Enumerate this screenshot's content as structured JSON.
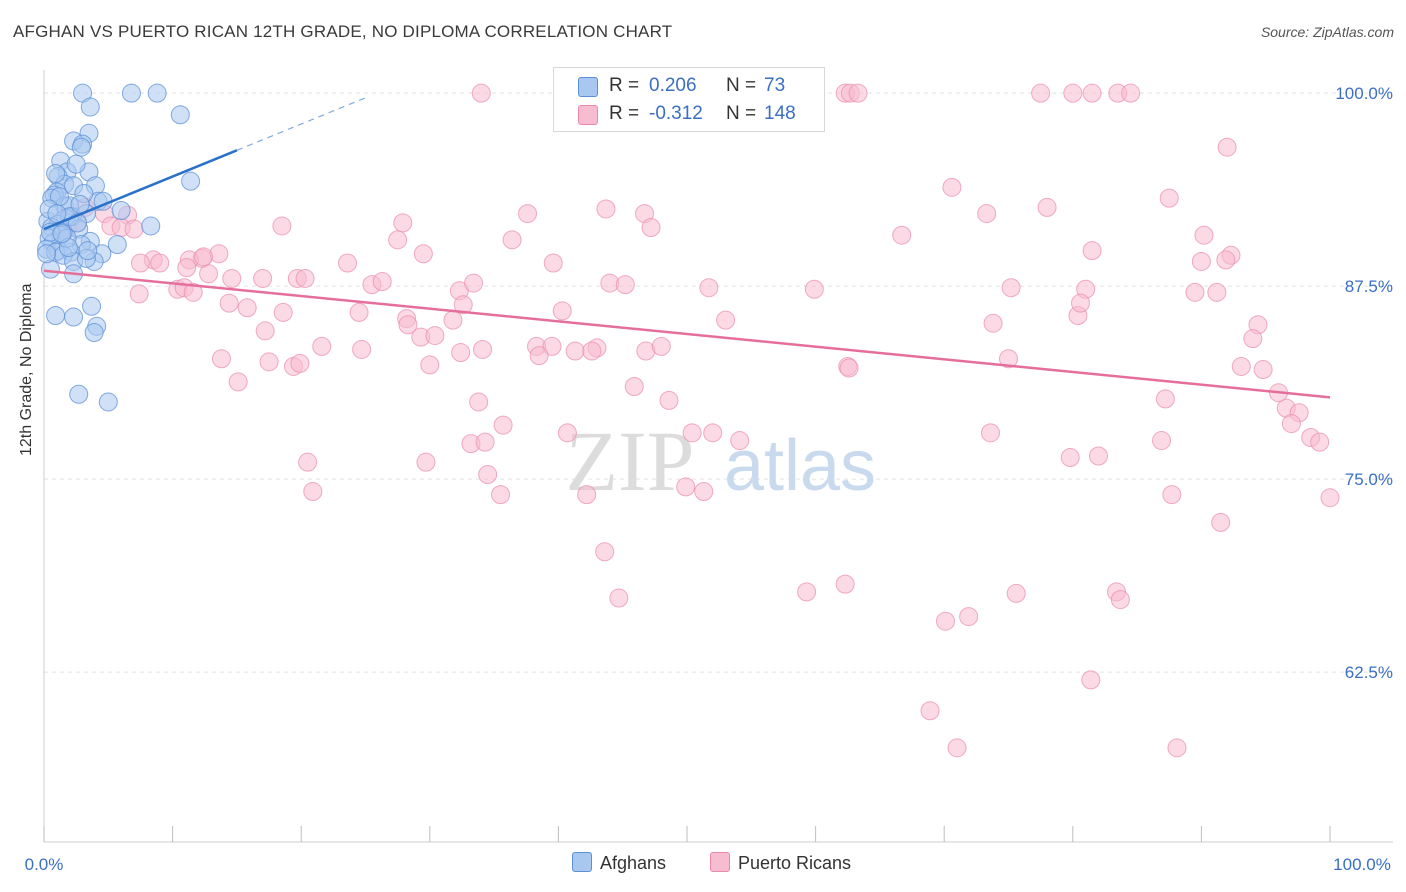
{
  "title": "AFGHAN VS PUERTO RICAN 12TH GRADE, NO DIPLOMA CORRELATION CHART",
  "source": "Source: ZipAtlas.com",
  "watermark": {
    "zip": "ZIP",
    "atlas": "atlas"
  },
  "legend": {
    "rows": [
      {
        "r_label": "R =",
        "r_value": "0.206",
        "n_label": "N =",
        "n_value": "73"
      },
      {
        "r_label": "R =",
        "r_value": "-0.312",
        "n_label": "N =",
        "n_value": "148"
      }
    ]
  },
  "bottom_legend": [
    {
      "label": "Afghans"
    },
    {
      "label": "Puerto Ricans"
    }
  ],
  "colors": {
    "afghan_fill": "#a9c8f0",
    "afghan_stroke": "#5b8fd6",
    "afghan_line": "#2a72c9",
    "pr_fill": "#f7bcd0",
    "pr_stroke": "#e98aaa",
    "pr_line": "#e56f9a",
    "tick_blue": "#3a6fc4"
  },
  "chart_data": {
    "type": "scatter",
    "title": "AFGHAN VS PUERTO RICAN 12TH GRADE, NO DIPLOMA CORRELATION CHART",
    "xlabel": "",
    "ylabel": "12th Grade, No Diploma",
    "xlim": [
      0,
      100
    ],
    "ylim": [
      51.5,
      101.5
    ],
    "x_tick_labels": [
      "0.0%",
      "100.0%"
    ],
    "y_ticks": [
      {
        "value": 100.0,
        "label": "100.0%"
      },
      {
        "value": 87.5,
        "label": "87.5%"
      },
      {
        "value": 75.0,
        "label": "75.0%"
      },
      {
        "value": 62.5,
        "label": "62.5%"
      }
    ],
    "series": [
      {
        "name": "Afghans",
        "r": 0.206,
        "n": 73,
        "trend": {
          "x0": 0.0,
          "y0": 91.2,
          "x1": 15.0,
          "y1": 96.3,
          "dash_to_x": 25.0,
          "dash_to_y": 99.7
        },
        "points": [
          [
            3.0,
            100.0
          ],
          [
            6.8,
            100.0
          ],
          [
            8.8,
            100.0
          ],
          [
            3.6,
            99.1
          ],
          [
            10.6,
            98.6
          ],
          [
            3.5,
            97.4
          ],
          [
            2.3,
            96.9
          ],
          [
            3.0,
            96.7
          ],
          [
            2.9,
            96.5
          ],
          [
            1.3,
            95.6
          ],
          [
            1.8,
            94.9
          ],
          [
            3.5,
            94.9
          ],
          [
            1.1,
            94.6
          ],
          [
            11.4,
            94.3
          ],
          [
            1.6,
            94.1
          ],
          [
            2.3,
            94.0
          ],
          [
            4.0,
            94.0
          ],
          [
            1.0,
            93.6
          ],
          [
            0.8,
            93.4
          ],
          [
            0.6,
            93.2
          ],
          [
            4.2,
            93.0
          ],
          [
            4.6,
            93.0
          ],
          [
            1.6,
            92.7
          ],
          [
            2.0,
            92.7
          ],
          [
            6.0,
            92.4
          ],
          [
            3.3,
            92.2
          ],
          [
            2.2,
            92.0
          ],
          [
            1.7,
            91.9
          ],
          [
            0.3,
            91.7
          ],
          [
            1.1,
            91.5
          ],
          [
            0.6,
            91.3
          ],
          [
            8.3,
            91.4
          ],
          [
            2.7,
            91.2
          ],
          [
            1.5,
            91.0
          ],
          [
            1.3,
            90.8
          ],
          [
            0.4,
            90.6
          ],
          [
            0.7,
            90.3
          ],
          [
            3.6,
            90.4
          ],
          [
            2.9,
            90.2
          ],
          [
            5.7,
            90.2
          ],
          [
            0.2,
            89.9
          ],
          [
            1.1,
            89.8
          ],
          [
            2.1,
            89.7
          ],
          [
            0.9,
            89.7
          ],
          [
            4.5,
            89.6
          ],
          [
            1.5,
            89.5
          ],
          [
            3.9,
            89.1
          ],
          [
            2.3,
            89.1
          ],
          [
            3.3,
            89.3
          ],
          [
            0.5,
            88.6
          ],
          [
            2.3,
            88.3
          ],
          [
            3.7,
            86.2
          ],
          [
            0.9,
            85.6
          ],
          [
            2.3,
            85.5
          ],
          [
            4.1,
            84.9
          ],
          [
            3.9,
            84.5
          ],
          [
            2.7,
            80.5
          ],
          [
            5.0,
            80.0
          ],
          [
            1.8,
            90.6
          ],
          [
            0.5,
            91.0
          ],
          [
            2.0,
            92.0
          ],
          [
            1.2,
            93.3
          ],
          [
            0.4,
            92.5
          ],
          [
            2.6,
            91.6
          ],
          [
            1.9,
            90.0
          ],
          [
            3.1,
            93.5
          ],
          [
            0.9,
            94.8
          ],
          [
            2.5,
            95.4
          ],
          [
            1.4,
            90.9
          ],
          [
            0.2,
            89.6
          ],
          [
            1.0,
            92.2
          ],
          [
            3.4,
            89.8
          ],
          [
            2.8,
            92.8
          ]
        ]
      },
      {
        "name": "Puerto Ricans",
        "r": -0.312,
        "n": 148,
        "trend": {
          "x0": 0.0,
          "y0": 88.5,
          "x1": 100.0,
          "y1": 80.3
        },
        "points": [
          [
            34.0,
            100.0
          ],
          [
            59.5,
            100.0
          ],
          [
            60.0,
            100.0
          ],
          [
            62.3,
            100.0
          ],
          [
            77.5,
            100.0
          ],
          [
            80.0,
            100.0
          ],
          [
            83.5,
            100.0
          ],
          [
            84.5,
            100.0
          ],
          [
            92.0,
            96.5
          ],
          [
            62.7,
            100.0
          ],
          [
            63.3,
            100.0
          ],
          [
            81.5,
            100.0
          ],
          [
            70.6,
            93.9
          ],
          [
            78.0,
            92.6
          ],
          [
            87.5,
            93.2
          ],
          [
            37.6,
            92.2
          ],
          [
            43.7,
            92.5
          ],
          [
            46.7,
            92.2
          ],
          [
            3.2,
            92.6
          ],
          [
            4.7,
            92.2
          ],
          [
            6.5,
            92.1
          ],
          [
            5.2,
            91.4
          ],
          [
            6.0,
            91.3
          ],
          [
            7.0,
            91.2
          ],
          [
            2.6,
            91.7
          ],
          [
            1.8,
            91.2
          ],
          [
            18.5,
            91.4
          ],
          [
            27.9,
            91.6
          ],
          [
            47.2,
            91.3
          ],
          [
            66.7,
            90.8
          ],
          [
            36.4,
            90.5
          ],
          [
            27.5,
            90.5
          ],
          [
            73.3,
            92.2
          ],
          [
            90.2,
            90.8
          ],
          [
            81.5,
            89.8
          ],
          [
            92.3,
            89.5
          ],
          [
            91.9,
            89.2
          ],
          [
            90.0,
            89.1
          ],
          [
            39.6,
            89.0
          ],
          [
            29.5,
            89.6
          ],
          [
            23.6,
            89.0
          ],
          [
            13.6,
            89.6
          ],
          [
            12.3,
            89.3
          ],
          [
            11.3,
            89.2
          ],
          [
            12.4,
            89.4
          ],
          [
            8.5,
            89.2
          ],
          [
            7.5,
            89.0
          ],
          [
            9.0,
            89.0
          ],
          [
            11.1,
            88.7
          ],
          [
            12.8,
            88.3
          ],
          [
            14.6,
            88.0
          ],
          [
            17.0,
            88.0
          ],
          [
            19.7,
            88.0
          ],
          [
            20.3,
            88.0
          ],
          [
            25.5,
            87.6
          ],
          [
            26.3,
            87.8
          ],
          [
            32.3,
            87.2
          ],
          [
            33.4,
            87.7
          ],
          [
            44.0,
            87.7
          ],
          [
            45.2,
            87.6
          ],
          [
            51.7,
            87.4
          ],
          [
            59.9,
            87.3
          ],
          [
            75.2,
            87.4
          ],
          [
            81.0,
            87.3
          ],
          [
            89.5,
            87.1
          ],
          [
            91.2,
            87.1
          ],
          [
            10.4,
            87.3
          ],
          [
            10.9,
            87.4
          ],
          [
            11.6,
            87.1
          ],
          [
            7.4,
            87.0
          ],
          [
            14.4,
            86.4
          ],
          [
            15.8,
            86.1
          ],
          [
            18.6,
            85.8
          ],
          [
            24.5,
            85.8
          ],
          [
            28.2,
            85.4
          ],
          [
            28.3,
            85.0
          ],
          [
            31.8,
            85.3
          ],
          [
            32.6,
            86.3
          ],
          [
            40.3,
            85.9
          ],
          [
            53.0,
            85.3
          ],
          [
            73.8,
            85.1
          ],
          [
            80.4,
            85.6
          ],
          [
            80.6,
            86.4
          ],
          [
            94.4,
            85.0
          ],
          [
            17.2,
            84.6
          ],
          [
            21.6,
            83.6
          ],
          [
            24.7,
            83.4
          ],
          [
            29.3,
            84.2
          ],
          [
            30.4,
            84.3
          ],
          [
            32.4,
            83.2
          ],
          [
            34.1,
            83.4
          ],
          [
            38.3,
            83.6
          ],
          [
            39.5,
            83.6
          ],
          [
            38.5,
            83.0
          ],
          [
            41.3,
            83.3
          ],
          [
            43.0,
            83.5
          ],
          [
            42.6,
            83.3
          ],
          [
            46.8,
            83.3
          ],
          [
            48.0,
            83.6
          ],
          [
            62.5,
            82.3
          ],
          [
            75.0,
            82.8
          ],
          [
            94.0,
            84.1
          ],
          [
            94.8,
            82.1
          ],
          [
            93.1,
            82.3
          ],
          [
            96.6,
            79.6
          ],
          [
            97.6,
            79.3
          ],
          [
            96.0,
            80.6
          ],
          [
            97.0,
            78.6
          ],
          [
            98.5,
            77.7
          ],
          [
            99.2,
            77.4
          ],
          [
            13.8,
            82.8
          ],
          [
            15.1,
            81.3
          ],
          [
            17.5,
            82.6
          ],
          [
            19.4,
            82.3
          ],
          [
            19.9,
            82.5
          ],
          [
            30.0,
            82.4
          ],
          [
            45.9,
            81.0
          ],
          [
            62.6,
            82.2
          ],
          [
            87.2,
            80.2
          ],
          [
            33.8,
            80.0
          ],
          [
            48.6,
            80.1
          ],
          [
            35.7,
            78.5
          ],
          [
            40.7,
            78.0
          ],
          [
            54.1,
            77.5
          ],
          [
            50.4,
            78.0
          ],
          [
            52.0,
            78.0
          ],
          [
            73.6,
            78.0
          ],
          [
            79.8,
            76.4
          ],
          [
            82.0,
            76.5
          ],
          [
            86.9,
            77.5
          ],
          [
            33.2,
            77.3
          ],
          [
            34.3,
            77.4
          ],
          [
            20.5,
            76.1
          ],
          [
            29.7,
            76.1
          ],
          [
            35.5,
            74.0
          ],
          [
            42.2,
            74.0
          ],
          [
            49.9,
            74.5
          ],
          [
            51.3,
            74.2
          ],
          [
            87.7,
            74.0
          ],
          [
            91.5,
            72.2
          ],
          [
            100.0,
            73.8
          ],
          [
            43.6,
            70.3
          ],
          [
            44.7,
            67.3
          ],
          [
            59.3,
            67.7
          ],
          [
            62.3,
            68.2
          ],
          [
            70.1,
            65.8
          ],
          [
            71.9,
            66.1
          ],
          [
            75.6,
            67.6
          ],
          [
            83.4,
            67.7
          ],
          [
            83.7,
            67.2
          ],
          [
            81.4,
            62.0
          ],
          [
            71.0,
            57.6
          ],
          [
            68.9,
            60.0
          ],
          [
            88.1,
            57.6
          ],
          [
            34.5,
            75.3
          ],
          [
            20.9,
            74.2
          ]
        ]
      }
    ]
  }
}
